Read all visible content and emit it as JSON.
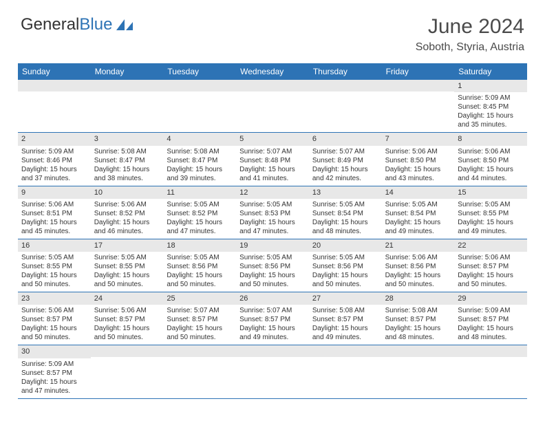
{
  "brand": {
    "part1": "General",
    "part2": "Blue"
  },
  "title": "June 2024",
  "subtitle": "Soboth, Styria, Austria",
  "colors": {
    "header_bg": "#2d73b5",
    "header_text": "#ffffff",
    "daynum_bg": "#e8e8e8",
    "border": "#2d73b5",
    "text": "#333333"
  },
  "day_names": [
    "Sunday",
    "Monday",
    "Tuesday",
    "Wednesday",
    "Thursday",
    "Friday",
    "Saturday"
  ],
  "first_weekday_index": 6,
  "days": [
    {
      "n": 1,
      "sunrise": "5:09 AM",
      "sunset": "8:45 PM",
      "daylight": "15 hours and 35 minutes."
    },
    {
      "n": 2,
      "sunrise": "5:09 AM",
      "sunset": "8:46 PM",
      "daylight": "15 hours and 37 minutes."
    },
    {
      "n": 3,
      "sunrise": "5:08 AM",
      "sunset": "8:47 PM",
      "daylight": "15 hours and 38 minutes."
    },
    {
      "n": 4,
      "sunrise": "5:08 AM",
      "sunset": "8:47 PM",
      "daylight": "15 hours and 39 minutes."
    },
    {
      "n": 5,
      "sunrise": "5:07 AM",
      "sunset": "8:48 PM",
      "daylight": "15 hours and 41 minutes."
    },
    {
      "n": 6,
      "sunrise": "5:07 AM",
      "sunset": "8:49 PM",
      "daylight": "15 hours and 42 minutes."
    },
    {
      "n": 7,
      "sunrise": "5:06 AM",
      "sunset": "8:50 PM",
      "daylight": "15 hours and 43 minutes."
    },
    {
      "n": 8,
      "sunrise": "5:06 AM",
      "sunset": "8:50 PM",
      "daylight": "15 hours and 44 minutes."
    },
    {
      "n": 9,
      "sunrise": "5:06 AM",
      "sunset": "8:51 PM",
      "daylight": "15 hours and 45 minutes."
    },
    {
      "n": 10,
      "sunrise": "5:06 AM",
      "sunset": "8:52 PM",
      "daylight": "15 hours and 46 minutes."
    },
    {
      "n": 11,
      "sunrise": "5:05 AM",
      "sunset": "8:52 PM",
      "daylight": "15 hours and 47 minutes."
    },
    {
      "n": 12,
      "sunrise": "5:05 AM",
      "sunset": "8:53 PM",
      "daylight": "15 hours and 47 minutes."
    },
    {
      "n": 13,
      "sunrise": "5:05 AM",
      "sunset": "8:54 PM",
      "daylight": "15 hours and 48 minutes."
    },
    {
      "n": 14,
      "sunrise": "5:05 AM",
      "sunset": "8:54 PM",
      "daylight": "15 hours and 49 minutes."
    },
    {
      "n": 15,
      "sunrise": "5:05 AM",
      "sunset": "8:55 PM",
      "daylight": "15 hours and 49 minutes."
    },
    {
      "n": 16,
      "sunrise": "5:05 AM",
      "sunset": "8:55 PM",
      "daylight": "15 hours and 50 minutes."
    },
    {
      "n": 17,
      "sunrise": "5:05 AM",
      "sunset": "8:55 PM",
      "daylight": "15 hours and 50 minutes."
    },
    {
      "n": 18,
      "sunrise": "5:05 AM",
      "sunset": "8:56 PM",
      "daylight": "15 hours and 50 minutes."
    },
    {
      "n": 19,
      "sunrise": "5:05 AM",
      "sunset": "8:56 PM",
      "daylight": "15 hours and 50 minutes."
    },
    {
      "n": 20,
      "sunrise": "5:05 AM",
      "sunset": "8:56 PM",
      "daylight": "15 hours and 50 minutes."
    },
    {
      "n": 21,
      "sunrise": "5:06 AM",
      "sunset": "8:56 PM",
      "daylight": "15 hours and 50 minutes."
    },
    {
      "n": 22,
      "sunrise": "5:06 AM",
      "sunset": "8:57 PM",
      "daylight": "15 hours and 50 minutes."
    },
    {
      "n": 23,
      "sunrise": "5:06 AM",
      "sunset": "8:57 PM",
      "daylight": "15 hours and 50 minutes."
    },
    {
      "n": 24,
      "sunrise": "5:06 AM",
      "sunset": "8:57 PM",
      "daylight": "15 hours and 50 minutes."
    },
    {
      "n": 25,
      "sunrise": "5:07 AM",
      "sunset": "8:57 PM",
      "daylight": "15 hours and 50 minutes."
    },
    {
      "n": 26,
      "sunrise": "5:07 AM",
      "sunset": "8:57 PM",
      "daylight": "15 hours and 49 minutes."
    },
    {
      "n": 27,
      "sunrise": "5:08 AM",
      "sunset": "8:57 PM",
      "daylight": "15 hours and 49 minutes."
    },
    {
      "n": 28,
      "sunrise": "5:08 AM",
      "sunset": "8:57 PM",
      "daylight": "15 hours and 48 minutes."
    },
    {
      "n": 29,
      "sunrise": "5:09 AM",
      "sunset": "8:57 PM",
      "daylight": "15 hours and 48 minutes."
    },
    {
      "n": 30,
      "sunrise": "5:09 AM",
      "sunset": "8:57 PM",
      "daylight": "15 hours and 47 minutes."
    }
  ],
  "labels": {
    "sunrise": "Sunrise:",
    "sunset": "Sunset:",
    "daylight": "Daylight:"
  }
}
